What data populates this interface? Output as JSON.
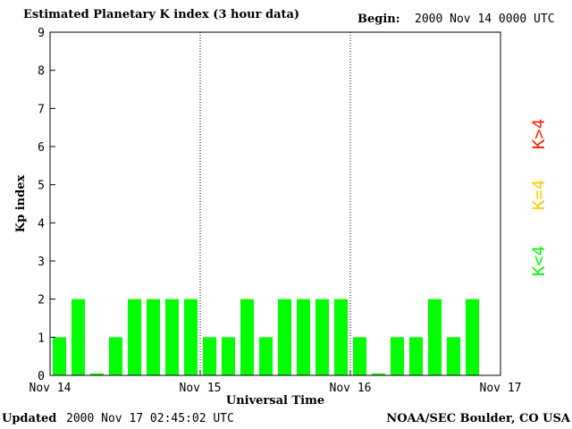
{
  "header": {
    "title": "Estimated Planetary K index (3 hour data)",
    "begin_label": "Begin:",
    "begin_value": "2000 Nov 14 0000 UTC"
  },
  "footer": {
    "updated_label": "Updated",
    "updated_value": "2000 Nov 17 02:45:02 UTC",
    "credit": "NOAA/SEC Boulder, CO USA"
  },
  "legend": {
    "greater": "K>4",
    "equal": "K=4",
    "less": "K<4"
  },
  "colors": {
    "less": "#00ff00",
    "equal": "#ffcc00",
    "greater": "#ff2000"
  },
  "chart_data": {
    "type": "bar",
    "title": "Estimated Planetary K index (3 hour data)",
    "xlabel": "Universal Time",
    "ylabel": "Kp index",
    "ylim": [
      0,
      9
    ],
    "yticks": [
      0,
      1,
      2,
      3,
      4,
      5,
      6,
      7,
      8,
      9
    ],
    "xticks": [
      "Nov 14",
      "Nov 15",
      "Nov 16",
      "Nov 17"
    ],
    "interval_hours": 3,
    "values": [
      1,
      2,
      0.05,
      1,
      2,
      2,
      2,
      2,
      1,
      1,
      2,
      1,
      2,
      2,
      2,
      2,
      1,
      0.05,
      1,
      1,
      2,
      1,
      2
    ]
  }
}
